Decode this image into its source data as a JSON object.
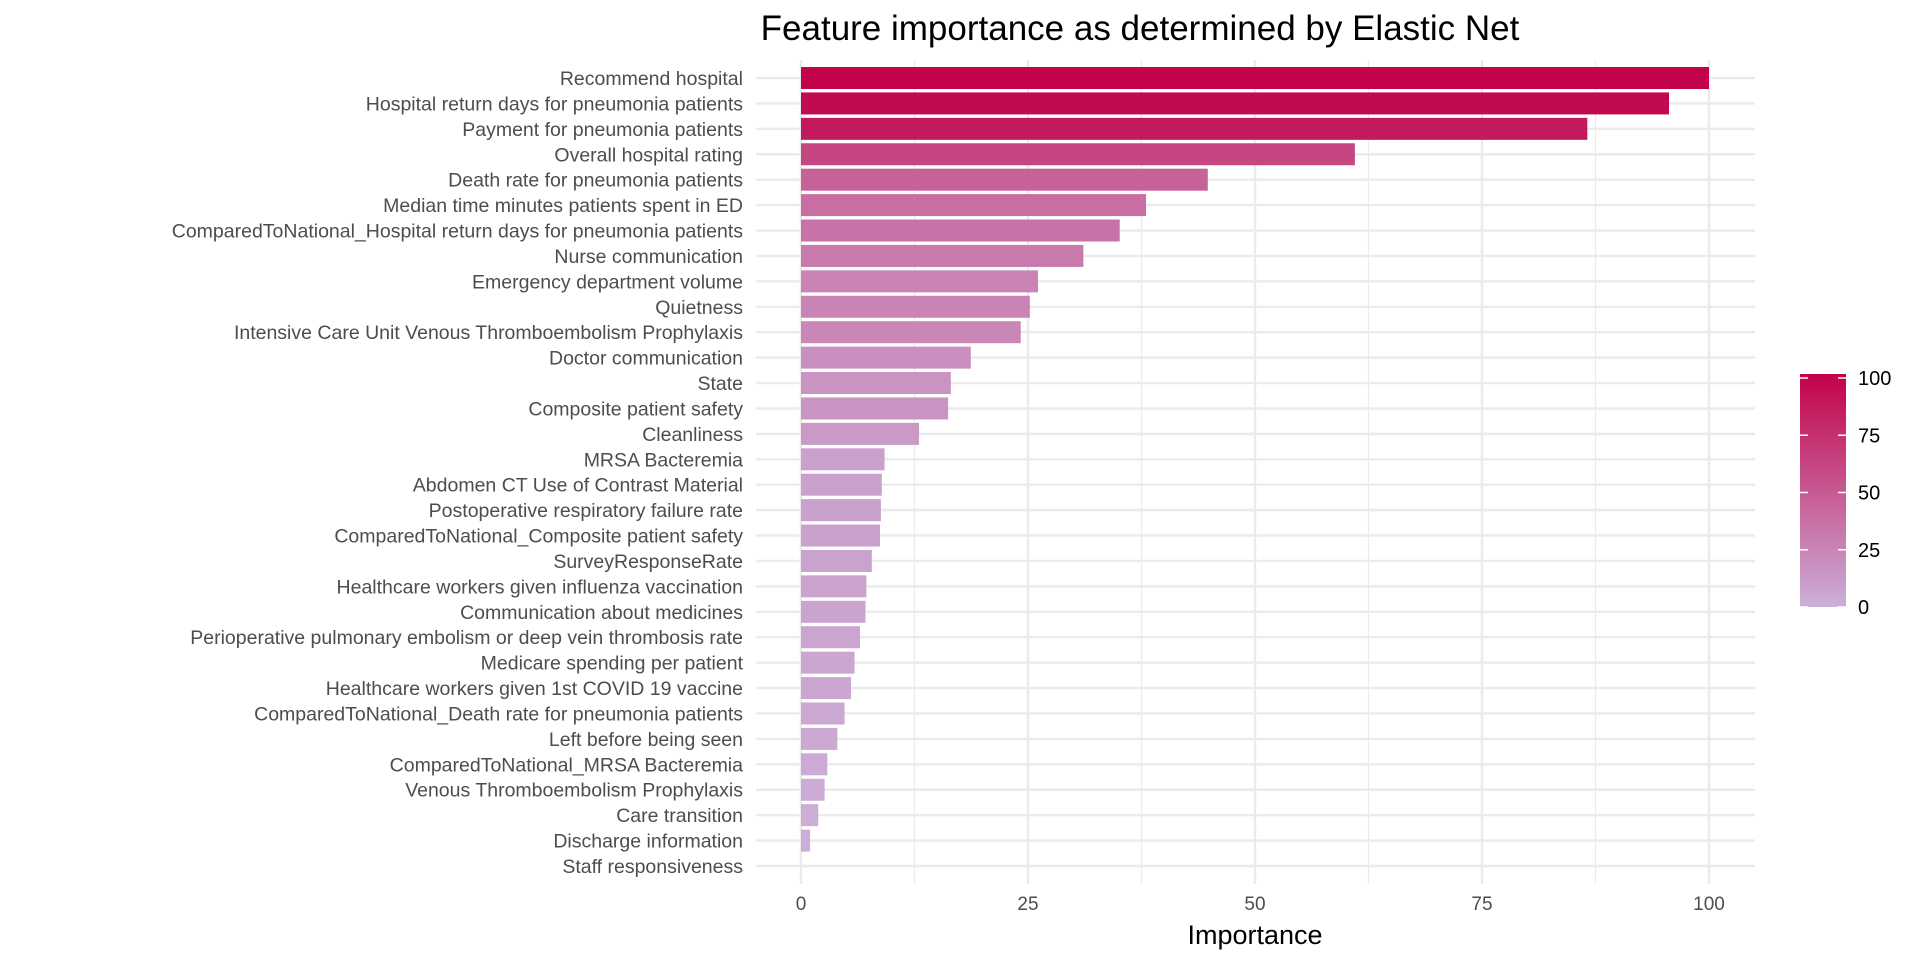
{
  "chart_data": {
    "type": "bar",
    "orientation": "horizontal",
    "title": "Feature importance as determined by Elastic Net",
    "xlabel": "Importance",
    "ylabel": "",
    "xlim": [
      0,
      100
    ],
    "x_ticks": [
      0,
      25,
      50,
      75,
      100
    ],
    "grid": true,
    "colors": {
      "low": "#cbb0d9",
      "high": "#c2024a"
    },
    "legend": {
      "title": "",
      "placement": "right",
      "ticks": [
        0,
        25,
        50,
        75,
        100
      ]
    },
    "categories": [
      "Recommend hospital",
      "Hospital return days for pneumonia patients",
      "Payment for pneumonia patients",
      "Overall hospital rating",
      "Death rate for pneumonia patients",
      "Median time  minutes  patients spent in ED",
      "ComparedToNational_Hospital return days for pneumonia patients",
      "Nurse communication",
      "Emergency department volume",
      "Quietness",
      "Intensive Care Unit Venous Thromboembolism Prophylaxis",
      "Doctor communication",
      "State",
      "Composite patient safety",
      "Cleanliness",
      "MRSA Bacteremia",
      "Abdomen CT Use of Contrast Material",
      "Postoperative respiratory failure rate",
      "ComparedToNational_Composite patient safety",
      "SurveyResponseRate",
      "Healthcare workers given influenza vaccination",
      "Communication about medicines",
      "Perioperative pulmonary embolism or deep vein thrombosis rate",
      "Medicare spending per patient",
      "Healthcare workers given 1st COVID 19 vaccine",
      "ComparedToNational_Death rate for pneumonia patients",
      "Left before being seen",
      "ComparedToNational_MRSA Bacteremia",
      "Venous Thromboembolism Prophylaxis",
      "Care transition",
      "Discharge information",
      "Staff responsiveness"
    ],
    "values": [
      100,
      95.6,
      86.6,
      61.0,
      44.8,
      38.0,
      35.1,
      31.1,
      26.1,
      25.2,
      24.2,
      18.7,
      16.5,
      16.2,
      13.0,
      9.2,
      8.9,
      8.8,
      8.7,
      7.8,
      7.2,
      7.1,
      6.5,
      5.9,
      5.5,
      4.8,
      4.0,
      2.9,
      2.6,
      1.9,
      1.0,
      0
    ]
  }
}
